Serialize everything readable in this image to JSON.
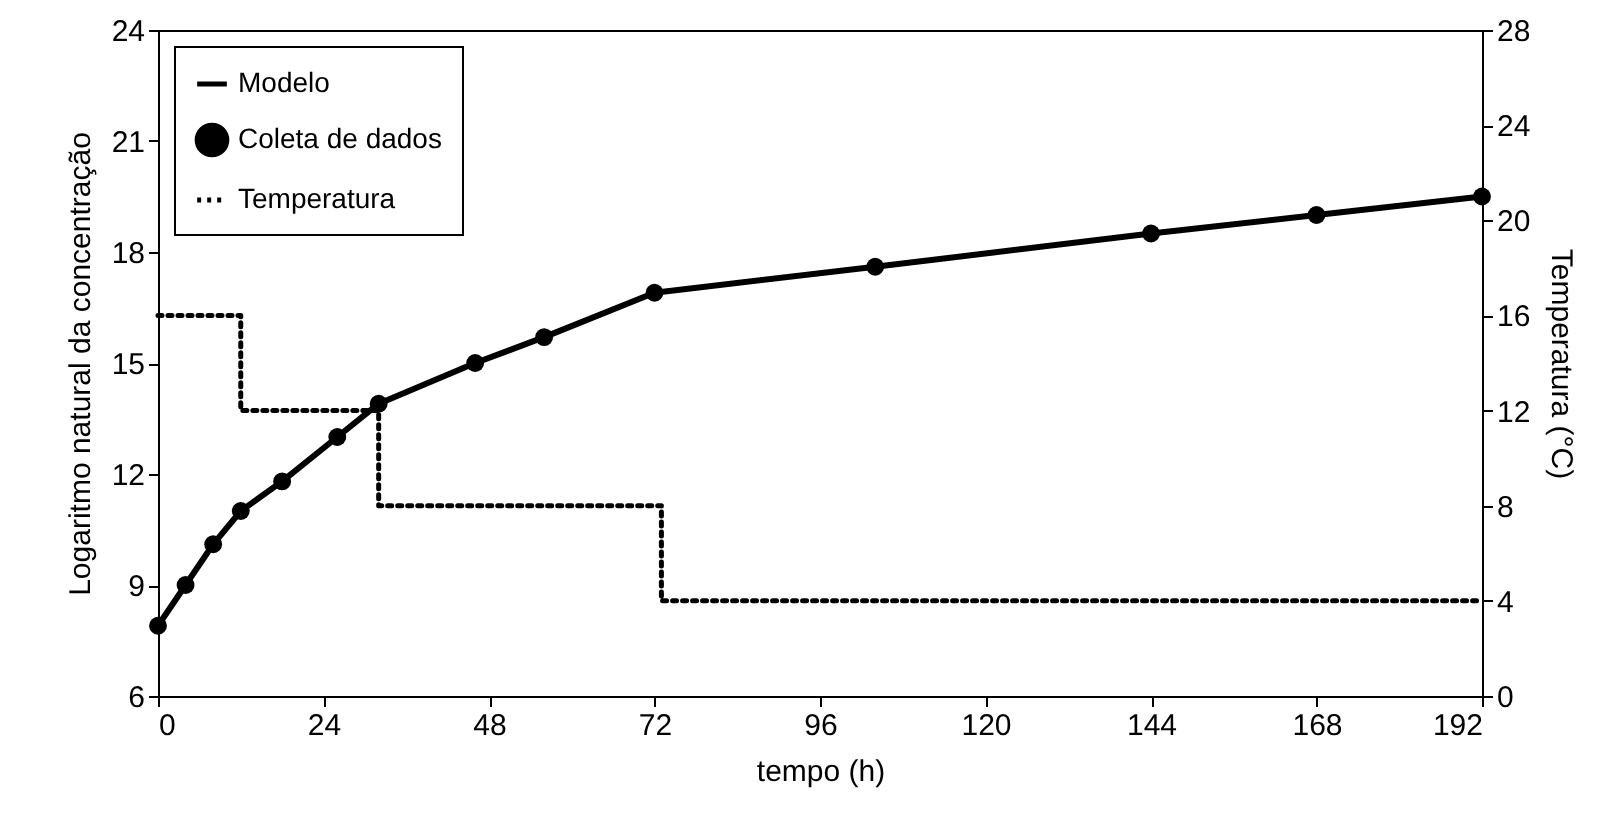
{
  "chart_data": {
    "type": "line",
    "xlabel": "tempo (h)",
    "ylabel": "Logaritmo natural da concentração",
    "y2label": "Temperatura (°C)",
    "xlim": [
      0,
      192
    ],
    "xticks": [
      0,
      24,
      48,
      72,
      96,
      120,
      144,
      168,
      192
    ],
    "ylim": [
      6,
      24
    ],
    "yticks": [
      6,
      9,
      12,
      15,
      18,
      21,
      24
    ],
    "y2lim": [
      0,
      28
    ],
    "y2ticks": [
      0,
      4,
      8,
      12,
      16,
      20,
      24,
      28
    ],
    "grid": false,
    "legend": "top left",
    "series": [
      {
        "name": "Modelo",
        "type": "line",
        "color": "#000000",
        "line_style": "solid",
        "marker": "none",
        "x": [
          0,
          4,
          8,
          12,
          18,
          26,
          32,
          46,
          56,
          72,
          104,
          144,
          168,
          192
        ],
        "values": [
          7.9,
          9.0,
          10.1,
          11.0,
          11.8,
          13.0,
          13.9,
          15.0,
          15.7,
          16.9,
          17.6,
          18.5,
          19.0,
          19.5
        ]
      },
      {
        "name": "Coleta de dados",
        "type": "scatter",
        "color": "#000000",
        "marker": "circle",
        "x": [
          0,
          4,
          8,
          12,
          18,
          26,
          32,
          46,
          56,
          72,
          104,
          144,
          168,
          192
        ],
        "values": [
          7.9,
          9.0,
          10.1,
          11.0,
          11.8,
          13.0,
          13.9,
          15.0,
          15.7,
          16.9,
          17.6,
          18.5,
          19.0,
          19.5
        ]
      },
      {
        "name": "Temperatura",
        "type": "step",
        "axis": "y2",
        "color": "#000000",
        "line_style": "dotted",
        "marker": "none",
        "x": [
          0,
          12,
          32,
          73,
          192
        ],
        "values": [
          16,
          12,
          8,
          4,
          4
        ]
      }
    ]
  }
}
